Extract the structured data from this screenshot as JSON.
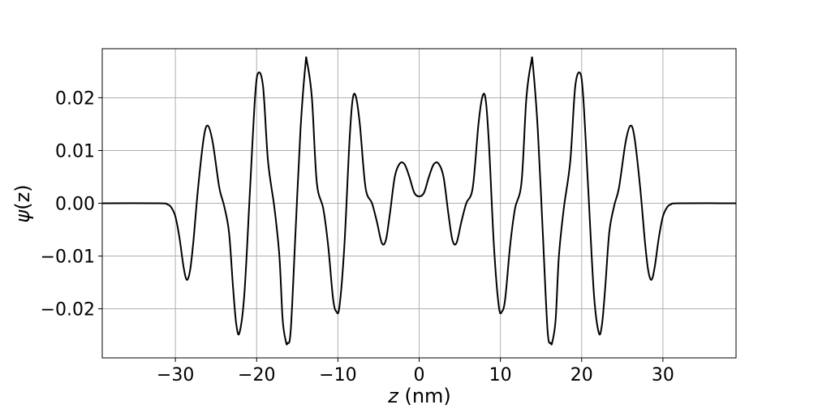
{
  "chart_data": {
    "type": "line",
    "xlabel_var": "z",
    "xlabel_unit": " (nm)",
    "ylabel_var": "ψ",
    "ylabel_arg": "(z)",
    "xlim": [
      -39,
      39
    ],
    "ylim": [
      -0.0293,
      0.0293
    ],
    "grid": true,
    "xticks": [
      -30,
      -20,
      -10,
      0,
      10,
      20,
      30
    ],
    "xtick_labels": [
      "−30",
      "−20",
      "−10",
      "0",
      "10",
      "20",
      "30"
    ],
    "yticks": [
      -0.02,
      -0.01,
      0.0,
      0.01,
      0.02
    ],
    "ytick_labels": [
      "−0.02",
      "−0.01",
      "0.00",
      "0.01",
      "0.02"
    ],
    "line_color": "#000000",
    "grid_color": "#b0b0b0",
    "series": [
      {
        "x": [
          -39,
          -32,
          -31,
          -30.5,
          -30,
          -29.5,
          -29,
          -28.6,
          -28.2,
          -27.8,
          -27.2,
          -26.5,
          -26,
          -25.4,
          -24.6,
          -24,
          -23.4,
          -22.9,
          -22.5,
          -22.1,
          -21.5,
          -20.8,
          -20.2,
          -19.8,
          -19.2,
          -18.6,
          -17.8,
          -17.2,
          -16.8,
          -16.4,
          -16.2,
          -15.8,
          -15.2,
          -14.6,
          -14,
          -13.8,
          -13.2,
          -12.6,
          -11.8,
          -11.2,
          -10.6,
          -10.2,
          -9.8,
          -9.2,
          -8.6,
          -8.2,
          -7.8,
          -7.3,
          -6.6,
          -5.8,
          -5.2,
          -4.6,
          -4.1,
          -3.6,
          -3,
          -2.4,
          -1.8,
          -1.2,
          -0.6,
          0,
          0.6,
          1.2,
          1.8,
          2.4,
          3,
          3.6,
          4.1,
          4.6,
          5.2,
          5.8,
          6.6,
          7.3,
          7.8,
          8.2,
          8.6,
          9.2,
          9.8,
          10.2,
          10.6,
          11.2,
          11.8,
          12.6,
          13.2,
          13.8,
          14,
          14.6,
          15.2,
          15.8,
          16.2,
          16.4,
          16.8,
          17.2,
          17.8,
          18.6,
          19.2,
          19.8,
          20.2,
          20.8,
          21.5,
          22.1,
          22.5,
          22.9,
          23.4,
          24,
          24.6,
          25.4,
          26,
          26.5,
          27.2,
          27.8,
          28.2,
          28.6,
          29,
          29.5,
          30,
          30.5,
          31,
          32,
          39
        ],
        "y": [
          0,
          0,
          -0.0002,
          -0.0008,
          -0.0025,
          -0.0065,
          -0.012,
          -0.0145,
          -0.0128,
          -0.0075,
          0.003,
          0.0125,
          0.0147,
          0.0115,
          0.003,
          -0.0005,
          -0.0055,
          -0.016,
          -0.023,
          -0.0245,
          -0.017,
          0.003,
          0.02,
          0.0247,
          0.022,
          0.008,
          -0.001,
          -0.01,
          -0.022,
          -0.0262,
          -0.0265,
          -0.024,
          -0.005,
          0.014,
          0.0262,
          0.0268,
          0.02,
          0.004,
          -0.001,
          -0.008,
          -0.018,
          -0.0205,
          -0.0195,
          -0.008,
          0.011,
          0.0195,
          0.0203,
          0.015,
          0.003,
          0,
          -0.0035,
          -0.0075,
          -0.007,
          -0.002,
          0.005,
          0.0075,
          0.0074,
          0.005,
          0.002,
          0.0013,
          0.002,
          0.005,
          0.0074,
          0.0075,
          0.005,
          -0.002,
          -0.007,
          -0.0075,
          -0.0035,
          0,
          0.003,
          0.015,
          0.0203,
          0.0195,
          0.011,
          -0.008,
          -0.0195,
          -0.0205,
          -0.018,
          -0.008,
          -0.001,
          0.004,
          0.02,
          0.0268,
          0.0262,
          0.014,
          -0.005,
          -0.024,
          -0.0265,
          -0.0262,
          -0.022,
          -0.01,
          -0.001,
          0.008,
          0.022,
          0.0247,
          0.02,
          0.003,
          -0.017,
          -0.0245,
          -0.023,
          -0.016,
          -0.0055,
          -0.0005,
          0.003,
          0.0115,
          0.0147,
          0.0125,
          0.003,
          -0.0075,
          -0.0128,
          -0.0145,
          -0.012,
          -0.0065,
          -0.0025,
          -0.0008,
          -0.0002,
          0,
          0
        ]
      }
    ]
  }
}
